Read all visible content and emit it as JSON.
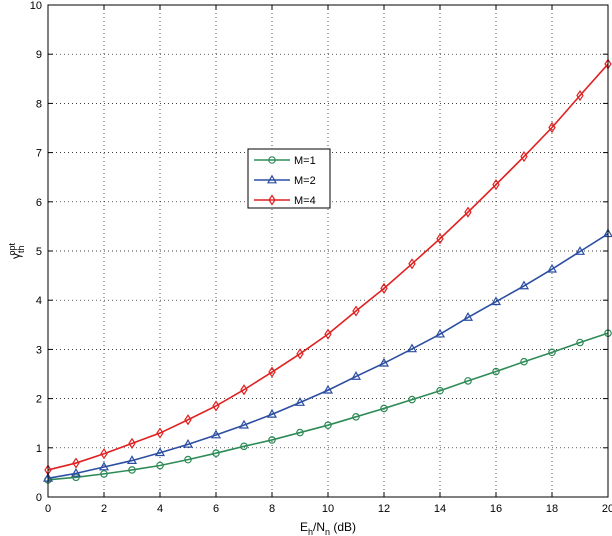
{
  "chart_data": {
    "type": "line",
    "xlabel": "E_{h}/N_{n} (dB)",
    "ylabel": "γ_{th}^{opt}",
    "xlim": [
      0,
      20
    ],
    "ylim": [
      0,
      10
    ],
    "x_ticks": [
      0,
      2,
      4,
      6,
      8,
      10,
      12,
      14,
      16,
      18,
      20
    ],
    "y_ticks": [
      0,
      1,
      2,
      3,
      4,
      5,
      6,
      7,
      8,
      9,
      10
    ],
    "grid": true,
    "grid_style": "dotted",
    "legend_position": "center-left",
    "x": [
      0,
      1,
      2,
      3,
      4,
      5,
      6,
      7,
      8,
      9,
      10,
      11,
      12,
      13,
      14,
      15,
      16,
      17,
      18,
      19,
      20
    ],
    "series": [
      {
        "name": "M=1",
        "color": "#2e8b57",
        "marker": "circle",
        "values": [
          0.35,
          0.4,
          0.47,
          0.55,
          0.64,
          0.76,
          0.89,
          1.03,
          1.16,
          1.31,
          1.46,
          1.63,
          1.8,
          1.98,
          2.16,
          2.36,
          2.55,
          2.75,
          2.94,
          3.14,
          3.33
        ]
      },
      {
        "name": "M=2",
        "color": "#2b4ea2",
        "marker": "triangle",
        "values": [
          0.38,
          0.48,
          0.61,
          0.74,
          0.9,
          1.07,
          1.26,
          1.46,
          1.68,
          1.92,
          2.17,
          2.45,
          2.72,
          3.01,
          3.31,
          3.65,
          3.97,
          4.29,
          4.63,
          4.99,
          5.35
        ]
      },
      {
        "name": "M=4",
        "color": "#e02020",
        "marker": "diamond",
        "values": [
          0.55,
          0.69,
          0.88,
          1.09,
          1.3,
          1.57,
          1.85,
          2.18,
          2.54,
          2.91,
          3.31,
          3.78,
          4.24,
          4.74,
          5.25,
          5.79,
          6.35,
          6.92,
          7.51,
          8.16,
          8.8
        ]
      }
    ]
  }
}
